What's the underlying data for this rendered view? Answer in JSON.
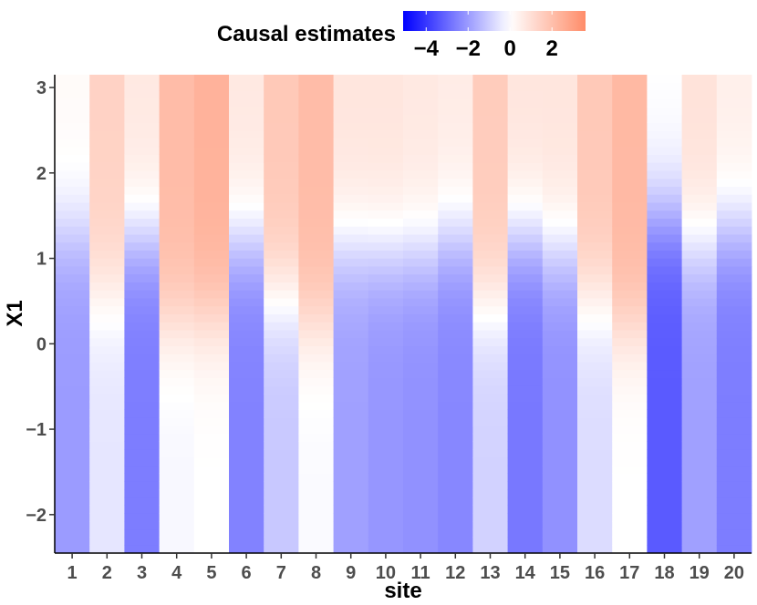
{
  "chart_data": {
    "type": "heatmap",
    "title": "",
    "xlabel": "site",
    "ylabel": "X1",
    "x_categories": [
      "1",
      "2",
      "3",
      "4",
      "5",
      "6",
      "7",
      "8",
      "9",
      "10",
      "11",
      "12",
      "13",
      "14",
      "15",
      "16",
      "17",
      "18",
      "19",
      "20"
    ],
    "x_tick_labels": [
      "1",
      "2",
      "3",
      "4",
      "5",
      "6",
      "7",
      "8",
      "9",
      "10",
      "11",
      "12",
      "13",
      "14",
      "15",
      "16",
      "17",
      "18",
      "19",
      "20"
    ],
    "y_range": [
      -2.45,
      3.15
    ],
    "y_ticks": [
      -2,
      -1,
      0,
      1,
      2,
      3
    ],
    "y_tick_labels": [
      "−2",
      "−1",
      "0",
      "1",
      "2",
      "3"
    ],
    "y_bins": 60,
    "site_curves": [
      {
        "site": "1",
        "low": -2.0,
        "high": 0.15,
        "knee": 1.3
      },
      {
        "site": "2",
        "low": -0.5,
        "high": 1.4,
        "knee": 0.6
      },
      {
        "site": "3",
        "low": -2.6,
        "high": 0.7,
        "knee": 1.25
      },
      {
        "site": "4",
        "low": -0.15,
        "high": 2.1,
        "knee": 0.25
      },
      {
        "site": "5",
        "low": 0.0,
        "high": 2.4,
        "knee": 0.3
      },
      {
        "site": "6",
        "low": -2.5,
        "high": 0.7,
        "knee": 1.2
      },
      {
        "site": "7",
        "low": -1.1,
        "high": 1.7,
        "knee": 0.6
      },
      {
        "site": "8",
        "low": -0.1,
        "high": 2.1,
        "knee": 0.25
      },
      {
        "site": "9",
        "low": -1.9,
        "high": 0.8,
        "knee": 1.15
      },
      {
        "site": "10",
        "low": -2.1,
        "high": 0.8,
        "knee": 1.1
      },
      {
        "site": "11",
        "low": -2.2,
        "high": 0.7,
        "knee": 1.1
      },
      {
        "site": "12",
        "low": -2.4,
        "high": 0.6,
        "knee": 1.25
      },
      {
        "site": "13",
        "low": -0.9,
        "high": 1.6,
        "knee": 0.5
      },
      {
        "site": "14",
        "low": -2.7,
        "high": 0.8,
        "knee": 1.25
      },
      {
        "site": "15",
        "low": -2.2,
        "high": 0.8,
        "knee": 1.1
      },
      {
        "site": "16",
        "low": -0.7,
        "high": 1.7,
        "knee": 0.55
      },
      {
        "site": "17",
        "low": 0.0,
        "high": 2.2,
        "knee": 0.2
      },
      {
        "site": "18",
        "low": -3.3,
        "high": 0.0,
        "knee": 1.5
      },
      {
        "site": "19",
        "low": -1.9,
        "high": 0.9,
        "knee": 1.15
      },
      {
        "site": "20",
        "low": -2.6,
        "high": 0.5,
        "knee": 1.35
      }
    ],
    "color_scale": {
      "low_color": "#0000ff",
      "mid_color": "#ffffff",
      "high_color": "#ff8c69",
      "min": -5.1,
      "max": 3.6,
      "mid": 0
    },
    "legend": {
      "title": "Causal estimates",
      "position": "top",
      "ticks": [
        -4,
        -2,
        0,
        2
      ],
      "tick_labels": [
        "−4",
        "−2",
        "0",
        "2"
      ],
      "range": [
        -5.1,
        3.6
      ]
    }
  }
}
